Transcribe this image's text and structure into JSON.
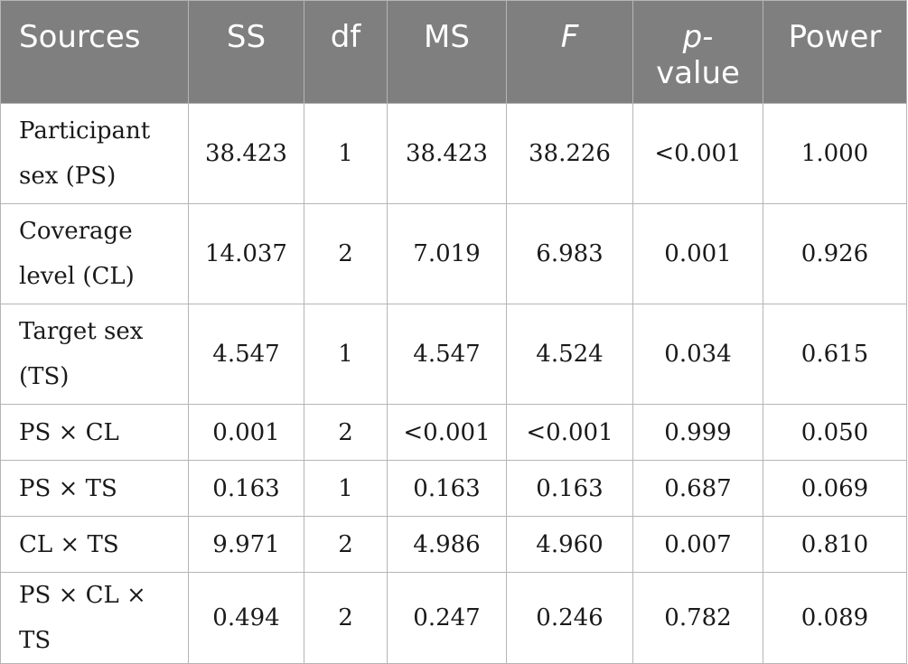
{
  "table": {
    "headers": {
      "sources": "Sources",
      "ss": "SS",
      "df": "df",
      "ms": "MS",
      "f": "F",
      "p_line1": "p-",
      "p_line2": "value",
      "power": "Power"
    },
    "rows": [
      {
        "source": "Participant sex (PS)",
        "ss": "38.423",
        "df": "1",
        "ms": "38.423",
        "f": "38.226",
        "p": "<0.001",
        "power": "1.000"
      },
      {
        "source": "Coverage level (CL)",
        "ss": "14.037",
        "df": "2",
        "ms": "7.019",
        "f": "6.983",
        "p": "0.001",
        "power": "0.926"
      },
      {
        "source": "Target sex (TS)",
        "ss": "4.547",
        "df": "1",
        "ms": "4.547",
        "f": "4.524",
        "p": "0.034",
        "power": "0.615"
      },
      {
        "source": "PS × CL",
        "ss": "0.001",
        "df": "2",
        "ms": "<0.001",
        "f": "<0.001",
        "p": "0.999",
        "power": "0.050"
      },
      {
        "source": "PS × TS",
        "ss": "0.163",
        "df": "1",
        "ms": "0.163",
        "f": "0.163",
        "p": "0.687",
        "power": "0.069"
      },
      {
        "source": "CL × TS",
        "ss": "9.971",
        "df": "2",
        "ms": "4.986",
        "f": "4.960",
        "p": "0.007",
        "power": "0.810"
      },
      {
        "source": "PS × CL × TS",
        "ss": "0.494",
        "df": "2",
        "ms": "0.247",
        "f": "0.246",
        "p": "0.782",
        "power": "0.089"
      }
    ]
  },
  "colors": {
    "header_bg": "#7f7f7f",
    "header_text": "#ffffff",
    "grid": "#b5b5b5"
  }
}
